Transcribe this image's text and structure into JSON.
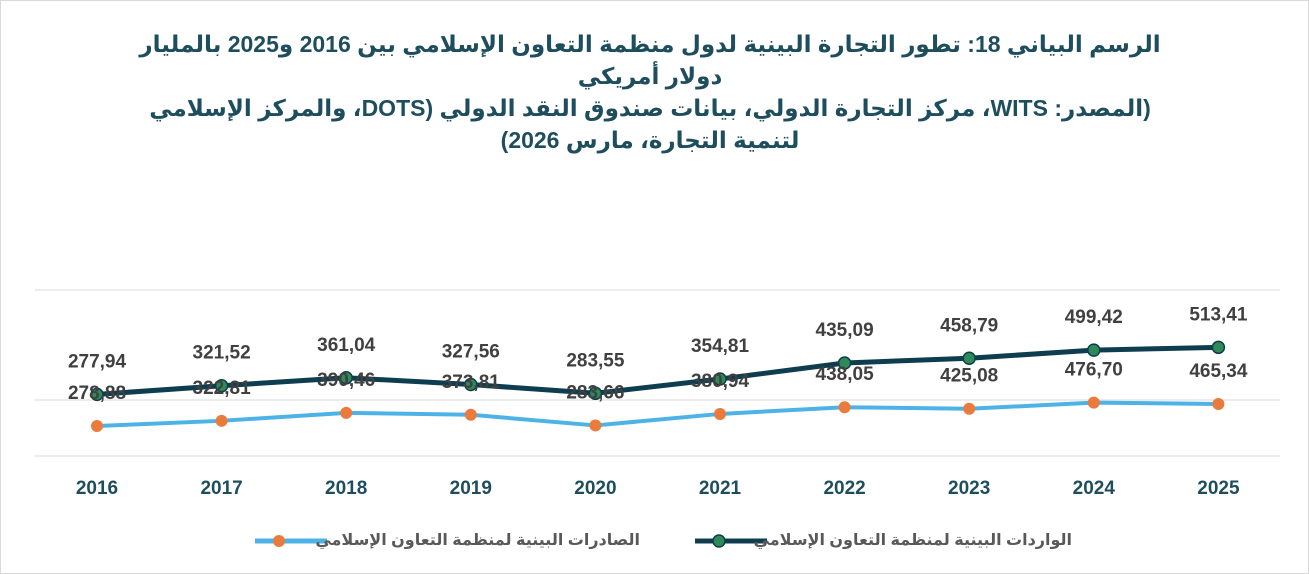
{
  "chart_data": {
    "type": "line",
    "title": "الرسم البياني 18: تطور التجارة البينية لدول منظمة التعاون الإسلامي بين 2016 و2025 بالمليار دولار أمريكي",
    "subtitle": "(المصدر: WITS، مركز التجارة الدولي، بيانات صندوق النقد الدولي (DOTS، والمركز الإسلامي لتنمية التجارة، مارس 2026)",
    "categories": [
      "2016",
      "2017",
      "2018",
      "2019",
      "2020",
      "2021",
      "2022",
      "2023",
      "2024",
      "2025"
    ],
    "ylim": [
      -30,
      800
    ],
    "y2lim": [
      25,
      1430
    ],
    "series": [
      {
        "name": "الواردات البينية لمنظمة التعاون الإسلامي",
        "color": "#0f3d50",
        "marker_color": "#2e8b57",
        "values": [
          277.94,
          321.52,
          361.04,
          327.56,
          283.55,
          354.81,
          435.09,
          458.79,
          499.42,
          513.41
        ],
        "value_labels": [
          "277,94",
          "321,52",
          "361,04",
          "327,56",
          "283,55",
          "354,81",
          "435,09",
          "458,79",
          "499,42",
          "513,41"
        ]
      },
      {
        "name": "الصادرات البينية لمنظمة التعاون الإسلامي",
        "color": "#4db3e6",
        "marker_color": "#ea7b3c",
        "axis": "y2",
        "values": [
          278.88,
          322.81,
          390.46,
          373.81,
          283.66,
          380.94,
          438.05,
          425.08,
          476.7,
          465.34
        ],
        "value_labels": [
          "278,88",
          "322,81",
          "390,46",
          "373,81",
          "283,66",
          "380,94",
          "438,05",
          "425,08",
          "476,70",
          "465,34"
        ]
      }
    ]
  }
}
